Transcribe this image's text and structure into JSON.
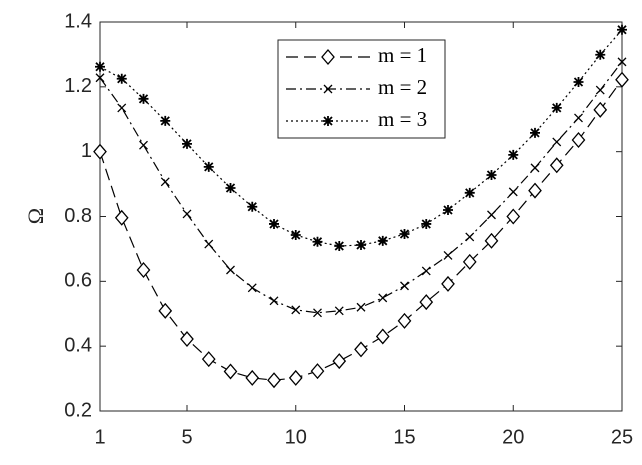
{
  "chart_data": {
    "type": "line",
    "ylabel": "Ω",
    "x": [
      1,
      2,
      3,
      4,
      5,
      6,
      7,
      8,
      9,
      10,
      11,
      12,
      13,
      14,
      15,
      16,
      17,
      18,
      19,
      20,
      21,
      22,
      23,
      24,
      25
    ],
    "series": [
      {
        "name": "m = 1",
        "color": "#000000",
        "line_style": "--",
        "marker": "diamond",
        "values": [
          1.0,
          0.796,
          0.635,
          0.509,
          0.422,
          0.36,
          0.322,
          0.302,
          0.295,
          0.302,
          0.323,
          0.354,
          0.39,
          0.43,
          0.478,
          0.536,
          0.592,
          0.66,
          0.725,
          0.8,
          0.88,
          0.958,
          1.036,
          1.129,
          1.222
        ]
      },
      {
        "name": "m = 2",
        "color": "#000000",
        "line_style": "-.",
        "marker": "x",
        "values": [
          1.228,
          1.135,
          1.02,
          0.907,
          0.808,
          0.715,
          0.635,
          0.58,
          0.54,
          0.512,
          0.503,
          0.509,
          0.52,
          0.549,
          0.586,
          0.632,
          0.68,
          0.737,
          0.805,
          0.876,
          0.95,
          1.03,
          1.104,
          1.19,
          1.277
        ]
      },
      {
        "name": "m = 3",
        "color": "#000000",
        "line_style": ":",
        "marker": "asterisk",
        "values": [
          1.262,
          1.225,
          1.163,
          1.095,
          1.024,
          0.953,
          0.888,
          0.83,
          0.777,
          0.743,
          0.722,
          0.709,
          0.712,
          0.725,
          0.746,
          0.777,
          0.82,
          0.873,
          0.928,
          0.99,
          1.058,
          1.135,
          1.215,
          1.299,
          1.376
        ]
      }
    ],
    "xlim": [
      1,
      25
    ],
    "xticks": [
      1,
      5,
      10,
      15,
      20,
      25
    ],
    "ylim": [
      0.2,
      1.4
    ],
    "yticks": [
      0.2,
      0.4,
      0.6,
      0.8,
      1,
      1.2,
      1.4
    ],
    "grid": false,
    "legend": "top-center"
  }
}
